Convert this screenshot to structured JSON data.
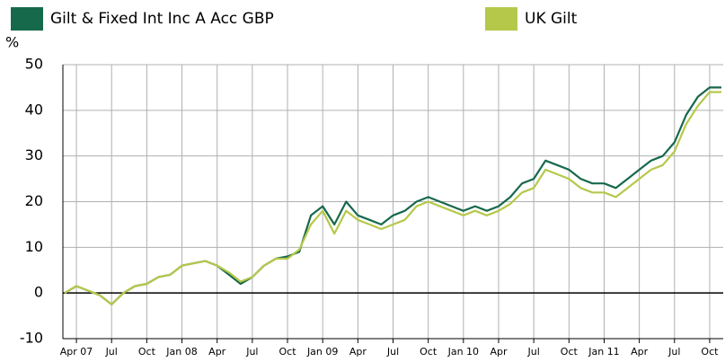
{
  "chart_data": {
    "type": "line",
    "y_label": "%",
    "categories": [
      null,
      "Apr 07",
      null,
      null,
      "Jul",
      null,
      null,
      "Oct",
      null,
      null,
      "Jan 08",
      null,
      null,
      "Apr",
      null,
      null,
      "Jul",
      null,
      null,
      "Oct",
      null,
      null,
      "Jan 09",
      null,
      null,
      "Apr",
      null,
      null,
      "Jul",
      null,
      null,
      "Oct",
      null,
      null,
      "Jan 10",
      null,
      null,
      "Apr",
      null,
      null,
      "Jul",
      null,
      null,
      "Oct",
      null,
      null,
      "Jan 11",
      null,
      null,
      "Apr",
      null,
      null,
      "Jul",
      null,
      null,
      "Oct",
      null
    ],
    "series": [
      {
        "name": "Gilt & Fixed Int Inc A Acc GBP",
        "color": "#17694c",
        "values": [
          0,
          1.5,
          0.5,
          -0.5,
          -2.5,
          0,
          1.5,
          2,
          3.5,
          4,
          6,
          6.5,
          7,
          6,
          4,
          2,
          3.5,
          6,
          7.5,
          8,
          9,
          17,
          19,
          15,
          20,
          17,
          16,
          15,
          17,
          18,
          20,
          21,
          20,
          19,
          18,
          19,
          18,
          19,
          21,
          24,
          25,
          29,
          28,
          27,
          25,
          24,
          24,
          23,
          25,
          27,
          29,
          30,
          33,
          39,
          43,
          45,
          45
        ]
      },
      {
        "name": "UK Gilt",
        "color": "#b6c84a",
        "values": [
          0,
          1.5,
          0.5,
          -0.5,
          -2.5,
          0,
          1.5,
          2,
          3.5,
          4,
          6,
          6.5,
          7,
          6,
          4.5,
          2.5,
          3.5,
          6,
          7.5,
          7.5,
          9.5,
          15,
          18,
          13,
          18,
          16,
          15,
          14,
          15,
          16,
          19,
          20,
          19,
          18,
          17,
          18,
          17,
          18,
          19.5,
          22,
          23,
          27,
          26,
          25,
          23,
          22,
          22,
          21,
          23,
          25,
          27,
          28,
          31,
          37,
          41,
          44,
          44
        ]
      }
    ],
    "ylim": [
      -10,
      50
    ],
    "yticks": [
      -10,
      0,
      10,
      20,
      30,
      40,
      50
    ],
    "grid": true
  }
}
